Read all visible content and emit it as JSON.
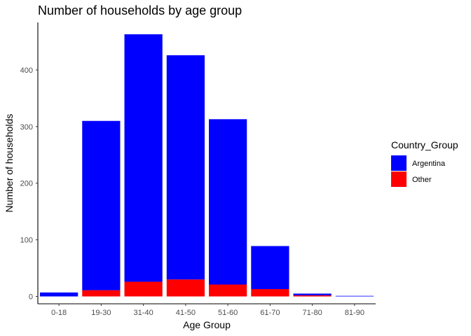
{
  "chart_data": {
    "type": "bar",
    "stacked": true,
    "title": "Number of households by age group",
    "xlabel": "Age Group",
    "ylabel": "Number of households",
    "categories": [
      "0-18",
      "19-30",
      "31-40",
      "41-50",
      "51-60",
      "61-70",
      "71-80",
      "81-90"
    ],
    "series": [
      {
        "name": "Other",
        "color": "#ff0000",
        "values": [
          0,
          11,
          26,
          30,
          21,
          13,
          2,
          0
        ]
      },
      {
        "name": "Argentina",
        "color": "#0000ff",
        "values": [
          7,
          299,
          437,
          396,
          292,
          76,
          3,
          1
        ]
      }
    ],
    "ylim": [
      -13,
      484
    ],
    "yticks": [
      0,
      100,
      200,
      300,
      400
    ],
    "grid": false,
    "legend": {
      "title": "Country_Group",
      "placement": "right",
      "items": [
        {
          "label": "Argentina",
          "color": "#0000ff"
        },
        {
          "label": "Other",
          "color": "#ff0000"
        }
      ]
    }
  }
}
